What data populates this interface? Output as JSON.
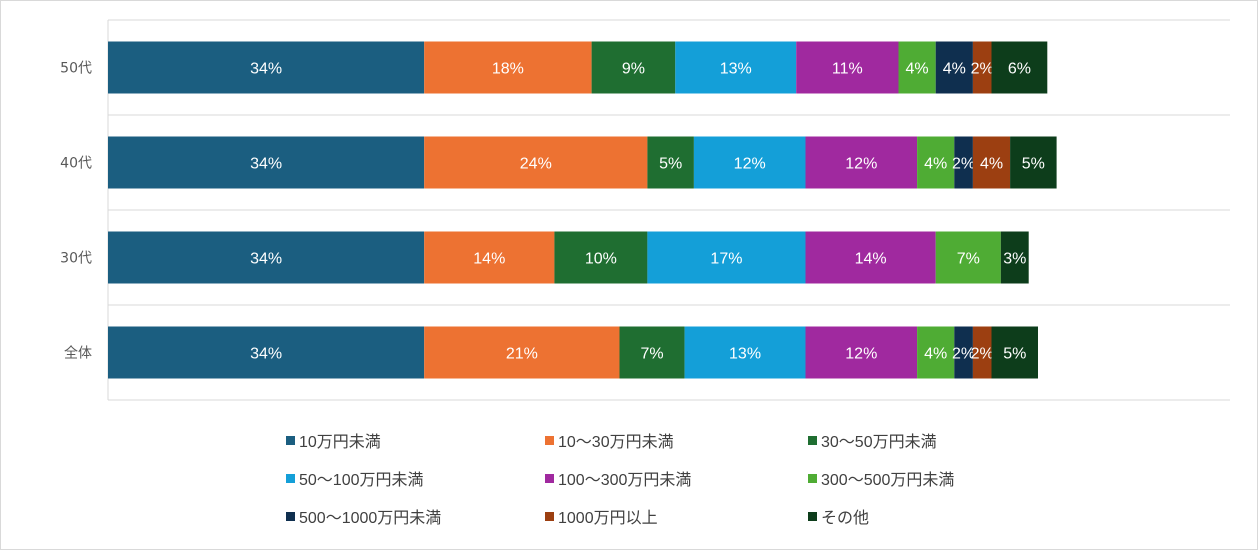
{
  "chart_data": {
    "type": "bar",
    "orientation": "horizontal",
    "stacked": true,
    "xlim": [
      0,
      100
    ],
    "grid": true,
    "legend_position": "bottom",
    "categories": [
      "50代",
      "40代",
      "30代",
      "全体"
    ],
    "series": [
      {
        "name": "10万円未満",
        "color": "#1b5e80",
        "values": [
          34,
          34,
          34,
          34
        ],
        "labels": [
          "34%",
          "34%",
          "34%",
          "34%"
        ]
      },
      {
        "name": "10～30万円未満",
        "color": "#ed7232",
        "values": [
          18,
          24,
          14,
          21
        ],
        "labels": [
          "18%",
          "24%",
          "14%",
          "21%"
        ]
      },
      {
        "name": "30～50万円未満",
        "color": "#1f6e31",
        "values": [
          9,
          5,
          10,
          7
        ],
        "labels": [
          "9%",
          "5%",
          "10%",
          "7%"
        ]
      },
      {
        "name": "50～100万円未満",
        "color": "#149fd8",
        "values": [
          13,
          12,
          17,
          13
        ],
        "labels": [
          "13%",
          "12%",
          "17%",
          "13%"
        ]
      },
      {
        "name": "100～300万円未満",
        "color": "#a0299f",
        "values": [
          11,
          12,
          14,
          12
        ],
        "labels": [
          "11%",
          "12%",
          "14%",
          "12%"
        ]
      },
      {
        "name": "300～500万円未満",
        "color": "#4fac34",
        "values": [
          4,
          4,
          7,
          4
        ],
        "labels": [
          "4%",
          "4%",
          "7%",
          "4%"
        ]
      },
      {
        "name": "500～1000万円未満",
        "color": "#0f2f4f",
        "values": [
          4,
          2,
          0,
          2
        ],
        "labels": [
          "4%",
          "2%",
          "",
          "2%"
        ]
      },
      {
        "name": "1000万円以上",
        "color": "#9c3f11",
        "values": [
          2,
          4,
          0,
          2
        ],
        "labels": [
          "2%",
          "4%",
          "",
          "2%"
        ]
      },
      {
        "name": "その他",
        "color": "#0d3d1b",
        "values": [
          6,
          5,
          3,
          5
        ],
        "labels": [
          "6%",
          "5%",
          "3%",
          "5%"
        ]
      }
    ]
  }
}
